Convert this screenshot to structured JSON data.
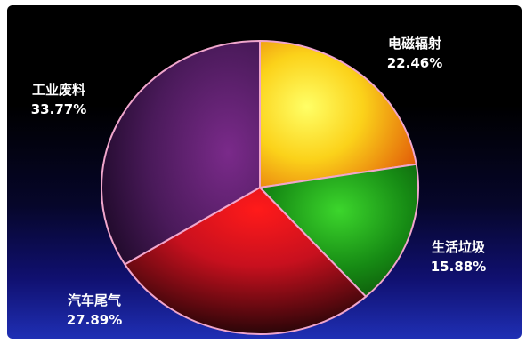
{
  "chart_data": {
    "type": "pie",
    "slices": [
      {
        "name": "电磁辐射",
        "value": 22.46,
        "label": "22.46%",
        "color": "#f7c11a"
      },
      {
        "name": "生活垃圾",
        "value": 15.88,
        "label": "15.88%",
        "color": "#1a9a18"
      },
      {
        "name": "汽车尾气",
        "value": 27.89,
        "label": "27.89%",
        "color": "#c8101e"
      },
      {
        "name": "工业废料",
        "value": 33.77,
        "label": "33.77%",
        "color": "#5a1f6a"
      }
    ],
    "start_angle_deg": 0,
    "direction": "clockwise",
    "outline_color": "#f0a6cc",
    "legend": "none"
  }
}
